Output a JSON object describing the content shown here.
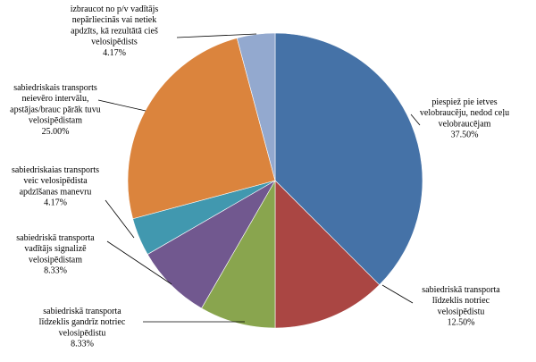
{
  "chart_data": {
    "type": "pie",
    "title": "",
    "start_angle_deg": 0,
    "direction": "clockwise",
    "legend": "none",
    "slices": [
      {
        "lines": [
          "piespiež pie ietves",
          "velobraucēju, nedod ceļu",
          "velobraucējam"
        ],
        "value": 37.5,
        "value_label": "37.50%",
        "color": "#4572A7"
      },
      {
        "lines": [
          "sabiedriskā transporta",
          "līdzeklis notriec",
          "velosipēdistu"
        ],
        "value": 12.5,
        "value_label": "12.50%",
        "color": "#AA4643"
      },
      {
        "lines": [
          "sabiedriskā transporta",
          "līdzeklis gandrīz notriec",
          "velosipēdistu"
        ],
        "value": 8.33,
        "value_label": "8.33%",
        "color": "#89A54E"
      },
      {
        "lines": [
          "sabiedriskā transporta",
          "vadītājs signalizē",
          "velosipēdistam"
        ],
        "value": 8.33,
        "value_label": "8.33%",
        "color": "#71588F"
      },
      {
        "lines": [
          "sabiedriskaias transports",
          "veic velosipēdista",
          "apdzīšanas manevru"
        ],
        "value": 4.17,
        "value_label": "4.17%",
        "color": "#4198AF"
      },
      {
        "lines": [
          "sabiedriskais transports",
          "neievēro intervālu,",
          "apstājas/brauc pārāk tuvu",
          "velosipēdistam"
        ],
        "value": 25.0,
        "value_label": "25.00%",
        "color": "#DB843D"
      },
      {
        "lines": [
          "izbraucot no p/v vadītājs",
          "nepārliecinās vai netiek",
          "apdzīts, kā rezultātā cieš",
          "velosipēdists"
        ],
        "value": 4.17,
        "value_label": "4.17%",
        "color": "#93A9CF"
      }
    ]
  }
}
